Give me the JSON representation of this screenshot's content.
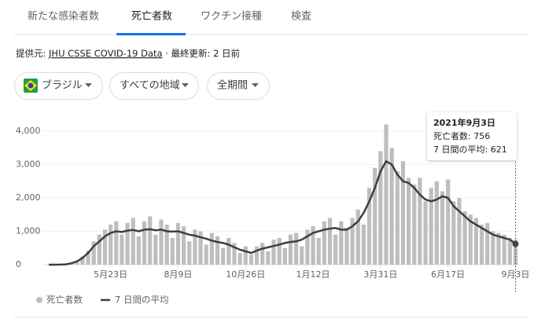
{
  "tabs": [
    "新たな感染者数",
    "死亡者数",
    "ワクチン接種",
    "検査"
  ],
  "source": {
    "prefix": "提供元: ",
    "link": "JHU CSSE COVID-19 Data",
    "suffix": " · 最終更新: 2 日前"
  },
  "filters": [
    "ブラジル",
    "すべての地域",
    "全期間"
  ],
  "chart_data": {
    "type": "bar",
    "categories": [
      null,
      null,
      null,
      null,
      null,
      null,
      null,
      null,
      null,
      null,
      null,
      "5月23日",
      null,
      null,
      null,
      null,
      null,
      null,
      null,
      null,
      null,
      null,
      null,
      "8月9日",
      null,
      null,
      null,
      null,
      null,
      null,
      null,
      null,
      null,
      null,
      null,
      "10月26日",
      null,
      null,
      null,
      null,
      null,
      null,
      null,
      null,
      null,
      null,
      null,
      "1月12日",
      null,
      null,
      null,
      null,
      null,
      null,
      null,
      null,
      null,
      null,
      null,
      "3月31日",
      null,
      null,
      null,
      null,
      null,
      null,
      null,
      null,
      null,
      null,
      null,
      "6月17日",
      null,
      null,
      null,
      null,
      null,
      null,
      null,
      null,
      null,
      null,
      null,
      "9月3日"
    ],
    "series": [
      {
        "name": "死亡者数",
        "type": "bar",
        "color": "#bdbec0",
        "values": [
          0,
          0,
          5,
          15,
          60,
          120,
          250,
          420,
          700,
          900,
          1050,
          1200,
          1300,
          900,
          1250,
          1400,
          850,
          1300,
          1450,
          900,
          1350,
          1200,
          800,
          1250,
          1150,
          700,
          1050,
          1000,
          600,
          950,
          850,
          500,
          800,
          650,
          350,
          550,
          300,
          550,
          650,
          400,
          750,
          800,
          500,
          900,
          950,
          550,
          1050,
          1150,
          800,
          1300,
          1400,
          900,
          1300,
          1100,
          1400,
          1650,
          1200,
          2300,
          2900,
          3400,
          4200,
          3500,
          2800,
          3100,
          2600,
          2400,
          2600,
          1900,
          2300,
          2500,
          2200,
          2550,
          1900,
          2000,
          1600,
          1500,
          1400,
          1200,
          1250,
          1000,
          950,
          900,
          800,
          756
        ]
      },
      {
        "name": "7 日間の平均",
        "type": "line",
        "color": "#3c4043",
        "values": [
          0,
          0,
          2,
          10,
          40,
          100,
          200,
          350,
          550,
          700,
          850,
          950,
          1000,
          980,
          1020,
          1040,
          1000,
          1050,
          1060,
          1030,
          1050,
          1000,
          990,
          1000,
          950,
          900,
          870,
          820,
          780,
          720,
          680,
          650,
          600,
          520,
          450,
          400,
          350,
          420,
          480,
          520,
          560,
          600,
          650,
          680,
          700,
          750,
          850,
          950,
          1000,
          1050,
          1080,
          1100,
          1050,
          1050,
          1150,
          1300,
          1550,
          1900,
          2300,
          2800,
          3100,
          3000,
          2700,
          2500,
          2450,
          2300,
          2100,
          1950,
          1900,
          1950,
          2050,
          2000,
          1750,
          1600,
          1450,
          1300,
          1200,
          1100,
          1000,
          900,
          850,
          800,
          750,
          621
        ]
      }
    ],
    "ylim": [
      0,
      4400
    ],
    "yticks": [
      0,
      {
        "value": 1000,
        "label": "1,000"
      },
      {
        "value": 2000,
        "label": "2,000"
      },
      {
        "value": 3000,
        "label": "3,000"
      },
      {
        "value": 4000,
        "label": "4,000"
      }
    ],
    "tooltip": {
      "title": "2021年9月3日",
      "labels": [
        "死亡者数: ",
        "7 日間の平均: "
      ]
    }
  }
}
